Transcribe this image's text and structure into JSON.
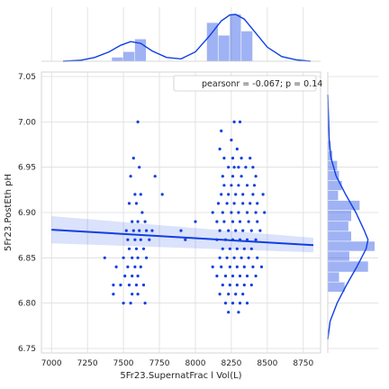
{
  "chart_data": {
    "type": "scatter",
    "title": "",
    "xlabel": "5Fr23.SupernatFrac l Vol(L)",
    "ylabel": "5Fr23.PostEth pH",
    "xlim": [
      6930,
      8870
    ],
    "ylim": [
      6.745,
      7.055
    ],
    "x_ticks": [
      7000,
      7250,
      7500,
      7750,
      8000,
      8250,
      8500,
      8750
    ],
    "y_ticks": [
      6.75,
      6.8,
      6.85,
      6.9,
      6.95,
      7.0,
      7.05
    ],
    "x_tick_labels": [
      "7000",
      "7250",
      "7500",
      "7750",
      "8000",
      "8250",
      "8500",
      "8750"
    ],
    "y_tick_labels": [
      "6.75",
      "6.80",
      "6.85",
      "6.90",
      "6.95",
      "7.00",
      "7.05"
    ],
    "grid": true,
    "legend": {
      "placement": "top-right",
      "text": "pearsonr = -0.067; p = 0.14"
    },
    "color": "#0f3fe3",
    "regression": {
      "x": [
        7000,
        8820
      ],
      "y": [
        6.881,
        6.864
      ],
      "ci_start": [
        6.866,
        6.896
      ],
      "ci_end": [
        6.856,
        6.872
      ]
    },
    "scatter_points": [
      [
        7600,
        7.0
      ],
      [
        7570,
        6.96
      ],
      [
        7610,
        6.95
      ],
      [
        7550,
        6.94
      ],
      [
        7620,
        6.92
      ],
      [
        7580,
        6.92
      ],
      [
        7720,
        6.94
      ],
      [
        7770,
        6.92
      ],
      [
        7540,
        6.91
      ],
      [
        7590,
        6.91
      ],
      [
        7630,
        6.9
      ],
      [
        7560,
        6.89
      ],
      [
        7600,
        6.89
      ],
      [
        7650,
        6.89
      ],
      [
        7520,
        6.88
      ],
      [
        7570,
        6.88
      ],
      [
        7610,
        6.88
      ],
      [
        7660,
        6.88
      ],
      [
        7700,
        6.88
      ],
      [
        7530,
        6.87
      ],
      [
        7580,
        6.87
      ],
      [
        7620,
        6.87
      ],
      [
        7680,
        6.87
      ],
      [
        7540,
        6.86
      ],
      [
        7590,
        6.86
      ],
      [
        7640,
        6.86
      ],
      [
        7500,
        6.85
      ],
      [
        7560,
        6.85
      ],
      [
        7600,
        6.85
      ],
      [
        7660,
        6.85
      ],
      [
        7370,
        6.85
      ],
      [
        7450,
        6.84
      ],
      [
        7530,
        6.84
      ],
      [
        7580,
        6.84
      ],
      [
        7620,
        6.84
      ],
      [
        7510,
        6.83
      ],
      [
        7560,
        6.83
      ],
      [
        7600,
        6.83
      ],
      [
        7430,
        6.82
      ],
      [
        7480,
        6.82
      ],
      [
        7540,
        6.82
      ],
      [
        7590,
        6.82
      ],
      [
        7640,
        6.82
      ],
      [
        7430,
        6.81
      ],
      [
        7560,
        6.81
      ],
      [
        7600,
        6.81
      ],
      [
        7500,
        6.8
      ],
      [
        7550,
        6.8
      ],
      [
        7650,
        6.8
      ],
      [
        7900,
        6.88
      ],
      [
        7930,
        6.87
      ],
      [
        8000,
        6.89
      ],
      [
        8270,
        7.0
      ],
      [
        8310,
        7.0
      ],
      [
        8180,
        6.99
      ],
      [
        8250,
        6.98
      ],
      [
        8170,
        6.97
      ],
      [
        8290,
        6.97
      ],
      [
        8200,
        6.96
      ],
      [
        8260,
        6.96
      ],
      [
        8320,
        6.96
      ],
      [
        8380,
        6.96
      ],
      [
        8230,
        6.95
      ],
      [
        8270,
        6.95
      ],
      [
        8300,
        6.95
      ],
      [
        8350,
        6.95
      ],
      [
        8400,
        6.95
      ],
      [
        8190,
        6.94
      ],
      [
        8260,
        6.94
      ],
      [
        8320,
        6.94
      ],
      [
        8420,
        6.94
      ],
      [
        8200,
        6.93
      ],
      [
        8250,
        6.93
      ],
      [
        8300,
        6.93
      ],
      [
        8360,
        6.93
      ],
      [
        8410,
        6.93
      ],
      [
        8180,
        6.92
      ],
      [
        8230,
        6.92
      ],
      [
        8280,
        6.92
      ],
      [
        8330,
        6.92
      ],
      [
        8400,
        6.92
      ],
      [
        8470,
        6.92
      ],
      [
        8160,
        6.91
      ],
      [
        8220,
        6.91
      ],
      [
        8270,
        6.91
      ],
      [
        8330,
        6.91
      ],
      [
        8380,
        6.91
      ],
      [
        8430,
        6.91
      ],
      [
        8120,
        6.9
      ],
      [
        8190,
        6.9
      ],
      [
        8250,
        6.9
      ],
      [
        8300,
        6.9
      ],
      [
        8360,
        6.9
      ],
      [
        8420,
        6.9
      ],
      [
        8480,
        6.9
      ],
      [
        8150,
        6.89
      ],
      [
        8200,
        6.89
      ],
      [
        8260,
        6.89
      ],
      [
        8310,
        6.89
      ],
      [
        8370,
        6.89
      ],
      [
        8430,
        6.89
      ],
      [
        8170,
        6.88
      ],
      [
        8230,
        6.88
      ],
      [
        8280,
        6.88
      ],
      [
        8330,
        6.88
      ],
      [
        8390,
        6.88
      ],
      [
        8450,
        6.88
      ],
      [
        8150,
        6.87
      ],
      [
        8210,
        6.87
      ],
      [
        8260,
        6.87
      ],
      [
        8310,
        6.87
      ],
      [
        8360,
        6.87
      ],
      [
        8420,
        6.87
      ],
      [
        8190,
        6.86
      ],
      [
        8240,
        6.86
      ],
      [
        8290,
        6.86
      ],
      [
        8340,
        6.86
      ],
      [
        8390,
        6.86
      ],
      [
        8170,
        6.85
      ],
      [
        8220,
        6.85
      ],
      [
        8270,
        6.85
      ],
      [
        8320,
        6.85
      ],
      [
        8370,
        6.85
      ],
      [
        8430,
        6.85
      ],
      [
        8120,
        6.84
      ],
      [
        8180,
        6.84
      ],
      [
        8240,
        6.84
      ],
      [
        8290,
        6.84
      ],
      [
        8340,
        6.84
      ],
      [
        8400,
        6.84
      ],
      [
        8460,
        6.84
      ],
      [
        8150,
        6.83
      ],
      [
        8210,
        6.83
      ],
      [
        8260,
        6.83
      ],
      [
        8310,
        6.83
      ],
      [
        8360,
        6.83
      ],
      [
        8420,
        6.83
      ],
      [
        8190,
        6.82
      ],
      [
        8240,
        6.82
      ],
      [
        8290,
        6.82
      ],
      [
        8340,
        6.82
      ],
      [
        8390,
        6.82
      ],
      [
        8170,
        6.81
      ],
      [
        8230,
        6.81
      ],
      [
        8280,
        6.81
      ],
      [
        8330,
        6.81
      ],
      [
        8210,
        6.8
      ],
      [
        8260,
        6.8
      ],
      [
        8310,
        6.8
      ],
      [
        8360,
        6.8
      ],
      [
        8230,
        6.79
      ],
      [
        8300,
        6.79
      ]
    ],
    "top_histogram": {
      "bins": [
        {
          "start": 7420,
          "end": 7500,
          "height": 0.08
        },
        {
          "start": 7500,
          "end": 7580,
          "height": 0.2
        },
        {
          "start": 7580,
          "end": 7660,
          "height": 0.47
        },
        {
          "start": 8080,
          "end": 8160,
          "height": 0.82
        },
        {
          "start": 8160,
          "end": 8240,
          "height": 0.55
        },
        {
          "start": 8240,
          "end": 8320,
          "height": 1.0
        },
        {
          "start": 8320,
          "end": 8400,
          "height": 0.64
        }
      ],
      "kde": [
        [
          7080,
          0.0
        ],
        [
          7200,
          0.02
        ],
        [
          7300,
          0.08
        ],
        [
          7400,
          0.2
        ],
        [
          7480,
          0.34
        ],
        [
          7550,
          0.42
        ],
        [
          7620,
          0.38
        ],
        [
          7700,
          0.22
        ],
        [
          7800,
          0.08
        ],
        [
          7900,
          0.05
        ],
        [
          8000,
          0.2
        ],
        [
          8100,
          0.55
        ],
        [
          8180,
          0.86
        ],
        [
          8240,
          0.99
        ],
        [
          8280,
          1.0
        ],
        [
          8340,
          0.9
        ],
        [
          8420,
          0.6
        ],
        [
          8500,
          0.3
        ],
        [
          8600,
          0.1
        ],
        [
          8700,
          0.03
        ],
        [
          8800,
          0.0
        ]
      ]
    },
    "right_histogram": {
      "bins": [
        {
          "start": 6.812,
          "end": 6.823,
          "height": 0.36
        },
        {
          "start": 6.823,
          "end": 6.834,
          "height": 0.24
        },
        {
          "start": 6.834,
          "end": 6.846,
          "height": 0.86
        },
        {
          "start": 6.846,
          "end": 6.857,
          "height": 0.46
        },
        {
          "start": 6.857,
          "end": 6.868,
          "height": 1.0
        },
        {
          "start": 6.868,
          "end": 6.879,
          "height": 0.5
        },
        {
          "start": 6.879,
          "end": 6.89,
          "height": 0.44
        },
        {
          "start": 6.89,
          "end": 6.902,
          "height": 0.5
        },
        {
          "start": 6.902,
          "end": 6.913,
          "height": 0.68
        },
        {
          "start": 6.913,
          "end": 6.924,
          "height": 0.22
        },
        {
          "start": 6.924,
          "end": 6.935,
          "height": 0.3
        },
        {
          "start": 6.935,
          "end": 6.946,
          "height": 0.24
        },
        {
          "start": 6.946,
          "end": 6.957,
          "height": 0.2
        },
        {
          "start": 6.957,
          "end": 6.968,
          "height": 0.1
        },
        {
          "start": 6.968,
          "end": 6.979,
          "height": 0.06
        }
      ],
      "kde": [
        [
          6.76,
          0.0
        ],
        [
          6.78,
          0.05
        ],
        [
          6.8,
          0.2
        ],
        [
          6.82,
          0.4
        ],
        [
          6.84,
          0.62
        ],
        [
          6.86,
          0.82
        ],
        [
          6.87,
          0.86
        ],
        [
          6.88,
          0.78
        ],
        [
          6.9,
          0.6
        ],
        [
          6.92,
          0.38
        ],
        [
          6.94,
          0.18
        ],
        [
          6.96,
          0.07
        ],
        [
          6.98,
          0.03
        ],
        [
          7.0,
          0.02
        ],
        [
          7.03,
          0.0
        ]
      ]
    }
  }
}
